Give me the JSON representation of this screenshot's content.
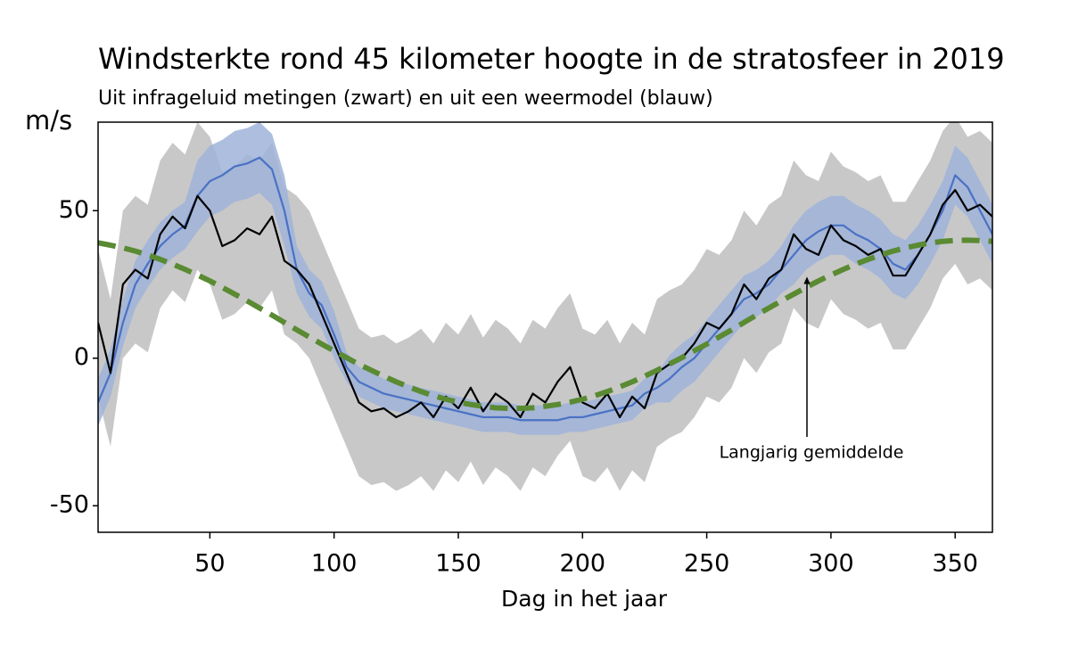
{
  "chart_data": {
    "type": "line",
    "title": "Windsterkte rond 45 kilometer hoogte in de stratosfeer in 2019",
    "subtitle": "Uit infrageluid metingen (zwart) en uit een weermodel (blauw)",
    "y_label": "m/s",
    "x_label": "Dag in het jaar",
    "annotation": "Langjarig gemiddelde",
    "xlim": [
      5,
      365
    ],
    "ylim": [
      -59,
      80
    ],
    "xticks": [
      50,
      100,
      150,
      200,
      250,
      300,
      350
    ],
    "yticks": [
      -50,
      0,
      50
    ],
    "x": [
      5,
      10,
      15,
      20,
      25,
      30,
      35,
      40,
      45,
      50,
      55,
      60,
      65,
      70,
      75,
      80,
      85,
      90,
      95,
      100,
      105,
      110,
      115,
      120,
      125,
      130,
      135,
      140,
      145,
      150,
      155,
      160,
      165,
      170,
      175,
      180,
      185,
      190,
      195,
      200,
      205,
      210,
      215,
      220,
      225,
      230,
      235,
      240,
      245,
      250,
      255,
      260,
      265,
      270,
      275,
      280,
      285,
      290,
      295,
      300,
      305,
      310,
      315,
      320,
      325,
      330,
      335,
      340,
      345,
      350,
      355,
      360,
      365
    ],
    "bands": [
      {
        "color": "#c8c8c8",
        "lower": [
          -13,
          -30,
          0,
          5,
          2,
          17,
          23,
          19,
          30,
          25,
          13,
          15,
          19,
          17,
          23,
          8,
          5,
          0,
          -10,
          -20,
          -30,
          -40,
          -43,
          -42,
          -45,
          -43,
          -40,
          -45,
          -38,
          -42,
          -35,
          -43,
          -37,
          -40,
          -45,
          -37,
          -40,
          -33,
          -28,
          -40,
          -42,
          -37,
          -45,
          -38,
          -42,
          -30,
          -27,
          -25,
          -20,
          -13,
          -15,
          -10,
          0,
          -5,
          2,
          5,
          17,
          12,
          10,
          20,
          15,
          13,
          10,
          12,
          3,
          3,
          10,
          17,
          27,
          32,
          25,
          27,
          23
        ],
        "upper": [
          37,
          20,
          50,
          55,
          52,
          67,
          73,
          69,
          80,
          75,
          63,
          65,
          69,
          67,
          73,
          58,
          55,
          50,
          40,
          30,
          20,
          10,
          7,
          8,
          5,
          7,
          10,
          5,
          12,
          8,
          15,
          7,
          13,
          10,
          5,
          13,
          10,
          17,
          22,
          10,
          8,
          13,
          5,
          12,
          8,
          20,
          23,
          25,
          30,
          37,
          35,
          40,
          50,
          45,
          52,
          55,
          67,
          62,
          60,
          70,
          65,
          63,
          60,
          62,
          53,
          53,
          60,
          67,
          77,
          82,
          75,
          77,
          73
        ]
      },
      {
        "color": "#9fb3d9",
        "lower": [
          -23,
          -13,
          4,
          17,
          24,
          30,
          34,
          37,
          43,
          48,
          50,
          53,
          54,
          56,
          52,
          38,
          22,
          14,
          10,
          0,
          -8,
          -13,
          -15,
          -17,
          -18,
          -19,
          -20,
          -21,
          -22,
          -23,
          -24,
          -25,
          -25,
          -25,
          -26,
          -26,
          -26,
          -26,
          -25,
          -25,
          -24,
          -23,
          -22,
          -21,
          -17,
          -15,
          -15,
          -11,
          -8,
          -3,
          2,
          7,
          12,
          14,
          17,
          22,
          25,
          30,
          33,
          35,
          35,
          32,
          30,
          27,
          22,
          20,
          25,
          32,
          40,
          52,
          48,
          40,
          32
        ],
        "upper": [
          -7,
          3,
          20,
          33,
          40,
          46,
          50,
          53,
          67,
          72,
          74,
          77,
          78,
          80,
          76,
          62,
          38,
          30,
          26,
          16,
          2,
          -3,
          -5,
          -7,
          -8,
          -9,
          -10,
          -11,
          -12,
          -13,
          -14,
          -15,
          -15,
          -15,
          -16,
          -16,
          -16,
          -16,
          -15,
          -15,
          -14,
          -13,
          -12,
          -11,
          -7,
          -5,
          1,
          5,
          8,
          13,
          18,
          23,
          28,
          30,
          33,
          38,
          45,
          50,
          53,
          55,
          55,
          52,
          50,
          47,
          42,
          40,
          45,
          52,
          60,
          72,
          68,
          60,
          52
        ]
      }
    ],
    "series": [
      {
        "color": "#4a72c4",
        "values": [
          -15,
          -5,
          12,
          25,
          32,
          38,
          42,
          45,
          55,
          60,
          62,
          65,
          66,
          68,
          64,
          50,
          30,
          22,
          18,
          8,
          -3,
          -8,
          -10,
          -12,
          -13,
          -14,
          -15,
          -16,
          -17,
          -18,
          -19,
          -20,
          -20,
          -20,
          -21,
          -21,
          -21,
          -21,
          -20,
          -20,
          -19,
          -18,
          -17,
          -16,
          -12,
          -10,
          -7,
          -3,
          0,
          5,
          10,
          15,
          20,
          22,
          25,
          30,
          35,
          40,
          43,
          45,
          45,
          42,
          40,
          37,
          32,
          30,
          35,
          42,
          50,
          62,
          58,
          50,
          42
        ]
      },
      {
        "color": "#000000",
        "values": [
          12,
          -5,
          25,
          30,
          27,
          42,
          48,
          44,
          55,
          50,
          38,
          40,
          44,
          42,
          48,
          33,
          30,
          25,
          15,
          5,
          -5,
          -15,
          -18,
          -17,
          -20,
          -18,
          -15,
          -20,
          -13,
          -17,
          -10,
          -18,
          -12,
          -15,
          -20,
          -12,
          -15,
          -8,
          -3,
          -15,
          -17,
          -12,
          -20,
          -13,
          -17,
          -5,
          -2,
          0,
          5,
          12,
          10,
          15,
          25,
          20,
          27,
          30,
          42,
          37,
          35,
          45,
          40,
          38,
          35,
          37,
          28,
          28,
          35,
          42,
          52,
          57,
          50,
          52,
          48
        ]
      },
      {
        "color": "#5a8a32",
        "dashed": true,
        "values": [
          39.1,
          38.3,
          37.4,
          36.3,
          35.0,
          33.5,
          31.9,
          30.1,
          28.2,
          26.2,
          24.0,
          21.7,
          19.4,
          17.0,
          14.6,
          12.1,
          9.6,
          7.2,
          4.8,
          2.5,
          0.2,
          -2.1,
          -4.1,
          -6.1,
          -8.0,
          -9.7,
          -11.3,
          -12.7,
          -13.9,
          -14.9,
          -15.7,
          -16.3,
          -16.8,
          -17.0,
          -17.0,
          -16.8,
          -16.3,
          -15.7,
          -14.9,
          -13.9,
          -12.7,
          -11.3,
          -9.7,
          -8.0,
          -6.1,
          -4.1,
          -2.0,
          0.2,
          2.5,
          4.8,
          7.2,
          9.6,
          12.1,
          14.6,
          17.0,
          19.4,
          21.7,
          24.0,
          26.2,
          28.2,
          30.1,
          31.9,
          33.5,
          35.0,
          36.3,
          37.4,
          38.3,
          39.1,
          39.6,
          39.9,
          40,
          39.9,
          39.6
        ]
      }
    ]
  }
}
